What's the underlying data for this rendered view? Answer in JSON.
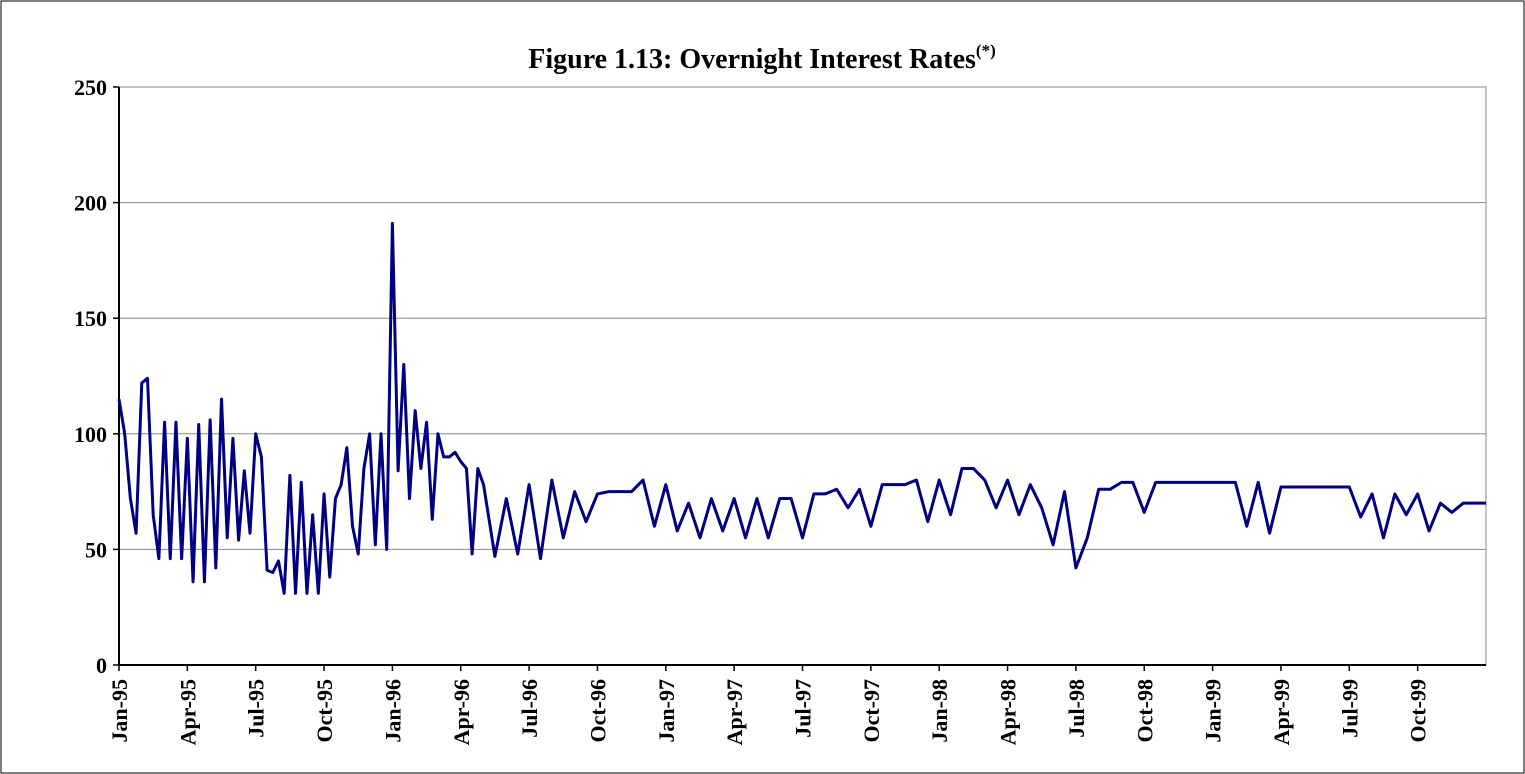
{
  "chart_data": {
    "type": "line",
    "title": "Figure 1.13: Overnight Interest Rates",
    "title_note": "(*)",
    "color": "#000080",
    "grid": true,
    "xlim": [
      0,
      60
    ],
    "ylim": [
      0,
      250
    ],
    "yticks": [
      0,
      50,
      100,
      150,
      200,
      250
    ],
    "xticks": [
      {
        "value": 0,
        "label": "Jan-95"
      },
      {
        "value": 3,
        "label": "Apr-95"
      },
      {
        "value": 6,
        "label": "Jul-95"
      },
      {
        "value": 9,
        "label": "Oct-95"
      },
      {
        "value": 12,
        "label": "Jan-96"
      },
      {
        "value": 15,
        "label": "Apr-96"
      },
      {
        "value": 18,
        "label": "Jul-96"
      },
      {
        "value": 21,
        "label": "Oct-96"
      },
      {
        "value": 24,
        "label": "Jan-97"
      },
      {
        "value": 27,
        "label": "Apr-97"
      },
      {
        "value": 30,
        "label": "Jul-97"
      },
      {
        "value": 33,
        "label": "Oct-97"
      },
      {
        "value": 36,
        "label": "Jan-98"
      },
      {
        "value": 39,
        "label": "Apr-98"
      },
      {
        "value": 42,
        "label": "Jul-98"
      },
      {
        "value": 45,
        "label": "Oct-98"
      },
      {
        "value": 48,
        "label": "Jan-99"
      },
      {
        "value": 51,
        "label": "Apr-99"
      },
      {
        "value": 54,
        "label": "Jul-99"
      },
      {
        "value": 57,
        "label": "Oct-99"
      }
    ],
    "x": [
      0,
      0.25,
      0.5,
      0.75,
      1,
      1.25,
      1.5,
      1.75,
      2,
      2.25,
      2.5,
      2.75,
      3,
      3.25,
      3.5,
      3.75,
      4,
      4.25,
      4.5,
      4.75,
      5,
      5.25,
      5.5,
      5.75,
      6,
      6.25,
      6.5,
      6.75,
      7,
      7.25,
      7.5,
      7.75,
      8,
      8.25,
      8.5,
      8.75,
      9,
      9.25,
      9.5,
      9.75,
      10,
      10.25,
      10.5,
      10.75,
      11,
      11.25,
      11.5,
      11.75,
      12,
      12.25,
      12.5,
      12.75,
      13,
      13.25,
      13.5,
      13.75,
      14,
      14.25,
      14.5,
      14.75,
      15,
      15.25,
      15.5,
      15.75,
      16,
      16.5,
      17,
      17.5,
      18,
      18.5,
      19,
      19.5,
      20,
      20.5,
      21,
      21.5,
      22,
      22.5,
      23,
      23.5,
      24,
      24.5,
      25,
      25.5,
      26,
      26.5,
      27,
      27.5,
      28,
      28.5,
      29,
      29.5,
      30,
      30.5,
      31,
      31.5,
      32,
      32.5,
      33,
      33.5,
      34,
      34.5,
      35,
      35.5,
      36,
      36.5,
      37,
      37.5,
      38,
      38.5,
      39,
      39.5,
      40,
      40.5,
      41,
      41.5,
      42,
      42.5,
      43,
      43.5,
      44,
      44.5,
      45,
      45.5,
      46,
      46.5,
      47,
      47.5,
      48,
      48.5,
      49,
      49.5,
      50,
      50.5,
      51,
      51.5,
      52,
      52.5,
      53,
      53.5,
      54,
      54.5,
      55,
      55.5,
      56,
      56.5,
      57,
      57.5,
      58,
      58.5,
      59,
      59.5,
      60
    ],
    "values": [
      115,
      100,
      72,
      57,
      122,
      124,
      65,
      46,
      105,
      46,
      105,
      46,
      98,
      36,
      104,
      36,
      106,
      42,
      115,
      55,
      98,
      54,
      84,
      57,
      100,
      90,
      41,
      40,
      45,
      31,
      82,
      31,
      79,
      31,
      65,
      31,
      74,
      38,
      72,
      78,
      94,
      60,
      48,
      85,
      100,
      52,
      100,
      50,
      191,
      84,
      130,
      72,
      110,
      85,
      105,
      63,
      100,
      90,
      90,
      92,
      88,
      85,
      48,
      85,
      78,
      47,
      72,
      48,
      78,
      46,
      80,
      55,
      75,
      62,
      74,
      75,
      75,
      75,
      80,
      60,
      78,
      58,
      70,
      55,
      72,
      58,
      72,
      55,
      72,
      55,
      72,
      72,
      55,
      74,
      74,
      76,
      68,
      76,
      60,
      78,
      78,
      78,
      80,
      62,
      80,
      65,
      85,
      85,
      80,
      68,
      80,
      65,
      78,
      68,
      52,
      75,
      42,
      55,
      76,
      76,
      79,
      79,
      66,
      79,
      79,
      79,
      79,
      79,
      79,
      79,
      79,
      60,
      79,
      57,
      77,
      77,
      77,
      77,
      77,
      77,
      77,
      64,
      74,
      55,
      74,
      65,
      74,
      58,
      70,
      66,
      70,
      70,
      70
    ]
  }
}
